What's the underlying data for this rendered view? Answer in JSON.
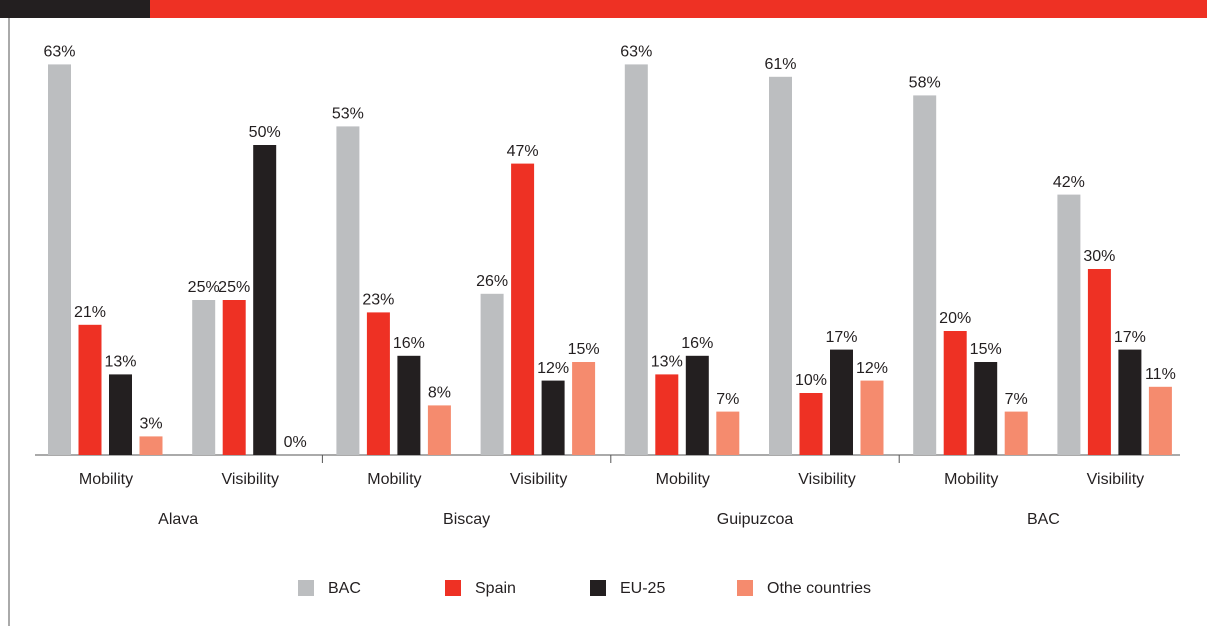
{
  "chart_data": {
    "type": "bar",
    "categories": [
      "Mobility",
      "Visibility",
      "Mobility",
      "Visibility",
      "Mobility",
      "Visibility",
      "Mobility",
      "Visibility"
    ],
    "groups": [
      "Alava",
      "Biscay",
      "Guipuzcoa",
      "BAC"
    ],
    "series": [
      {
        "name": "BAC",
        "color": "#bcbec0",
        "values": [
          63,
          25,
          53,
          26,
          63,
          61,
          58,
          42
        ],
        "value_labels": [
          "63%",
          "25%",
          "53%",
          "26%",
          "63%",
          "61%",
          "58%",
          "42%"
        ]
      },
      {
        "name": "Spain",
        "color": "#ee3124",
        "values": [
          21,
          25,
          23,
          47,
          13,
          10,
          20,
          30
        ],
        "value_labels": [
          "21%",
          "25%",
          "23%",
          "47%",
          "13%",
          "10%",
          "20%",
          "30%"
        ]
      },
      {
        "name": "EU-25",
        "color": "#231f20",
        "values": [
          13,
          50,
          16,
          12,
          16,
          17,
          15,
          17
        ],
        "value_labels": [
          "13%",
          "50%",
          "16%",
          "12%",
          "16%",
          "17%",
          "15%",
          "17%"
        ]
      },
      {
        "name": "Othe countries",
        "color": "#f58b6e",
        "values": [
          3,
          0,
          8,
          15,
          7,
          12,
          7,
          11
        ],
        "value_labels": [
          "3%",
          "0%",
          "8%",
          "15%",
          "7%",
          "12%",
          "7%",
          "11%"
        ]
      }
    ],
    "legend": "bottom"
  }
}
